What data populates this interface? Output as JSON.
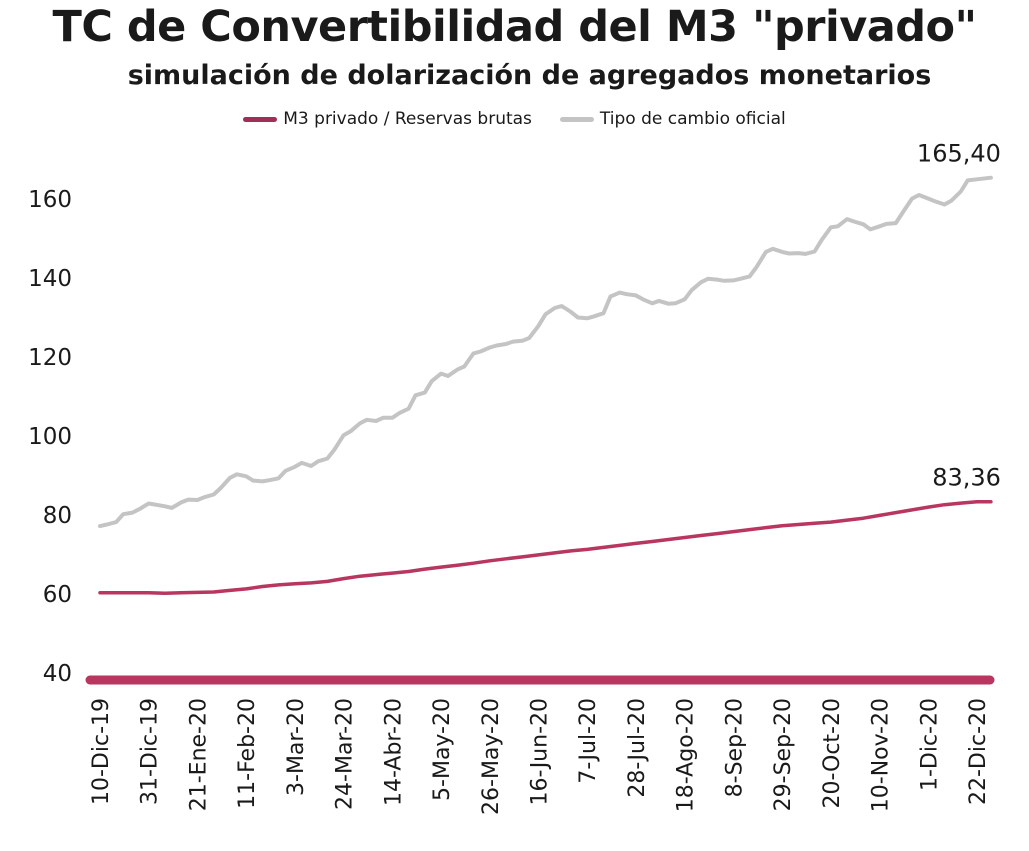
{
  "chart_data": {
    "type": "line",
    "title": "TC de Convertibilidad del M3 \"privado\"",
    "subtitle": "simulación de dolarización de agregados monetarios",
    "ylim": [
      40,
      165
    ],
    "y_ticks": [
      "40",
      "60",
      "80",
      "100",
      "120",
      "140",
      "160"
    ],
    "x_ticks": [
      "10-Dic-19",
      "31-Dic-19",
      "21-Ene-20",
      "11-Feb-20",
      "3-Mar-20",
      "24-Mar-20",
      "14-Abr-20",
      "5-May-20",
      "26-May-20",
      "16-Jun-20",
      "7-Jul-20",
      "28-Jul-20",
      "18-Ago-20",
      "8-Sep-20",
      "29-Sep-20",
      "20-Oct-20",
      "10-Nov-20",
      "1-Dic-20",
      "22-Dic-20"
    ],
    "grid": false,
    "legend_position": "top",
    "end_labels": {
      "m3": "83,36",
      "tc": "165,40"
    },
    "series": [
      {
        "key": "m3",
        "name": "M3 privado / Reservas brutas",
        "color": "#b8365f",
        "x": [
          "10-Dic-19",
          "17-Dic-19",
          "24-Dic-19",
          "31-Dic-19",
          "7-Ene-20",
          "14-Ene-20",
          "21-Ene-20",
          "28-Ene-20",
          "4-Feb-20",
          "11-Feb-20",
          "18-Feb-20",
          "25-Feb-20",
          "3-Mar-20",
          "10-Mar-20",
          "17-Mar-20",
          "24-Mar-20",
          "31-Mar-20",
          "7-Abr-20",
          "14-Abr-20",
          "21-Abr-20",
          "28-Abr-20",
          "5-May-20",
          "12-May-20",
          "19-May-20",
          "26-May-20",
          "2-Jun-20",
          "9-Jun-20",
          "16-Jun-20",
          "23-Jun-20",
          "30-Jun-20",
          "7-Jul-20",
          "14-Jul-20",
          "21-Jul-20",
          "28-Jul-20",
          "4-Ago-20",
          "11-Ago-20",
          "18-Ago-20",
          "25-Ago-20",
          "1-Sep-20",
          "8-Sep-20",
          "15-Sep-20",
          "22-Sep-20",
          "29-Sep-20",
          "6-Oct-20",
          "13-Oct-20",
          "20-Oct-20",
          "27-Oct-20",
          "3-Nov-20",
          "10-Nov-20",
          "17-Nov-20",
          "24-Nov-20",
          "1-Dic-20",
          "8-Dic-20",
          "15-Dic-20",
          "22-Dic-20",
          "28-Dic-20"
        ],
        "values": [
          60.3,
          60.3,
          60.3,
          60.3,
          60.2,
          60.3,
          60.4,
          60.5,
          60.9,
          61.3,
          61.9,
          62.3,
          62.6,
          62.8,
          63.2,
          63.9,
          64.5,
          64.9,
          65.3,
          65.7,
          66.3,
          66.8,
          67.3,
          67.8,
          68.4,
          68.9,
          69.4,
          69.9,
          70.4,
          70.9,
          71.3,
          71.8,
          72.3,
          72.8,
          73.3,
          73.8,
          74.3,
          74.8,
          75.3,
          75.8,
          76.3,
          76.8,
          77.3,
          77.6,
          77.9,
          78.2,
          78.7,
          79.2,
          79.9,
          80.6,
          81.3,
          82.0,
          82.6,
          83.0,
          83.36,
          83.36
        ]
      },
      {
        "key": "tc",
        "name": "Tipo de cambio oficial",
        "color": "#c4c4c4",
        "x": [
          "10-Dic-19",
          "13-Dic-19",
          "17-Dic-19",
          "20-Dic-19",
          "24-Dic-19",
          "27-Dic-19",
          "31-Dic-19",
          "3-Ene-20",
          "7-Ene-20",
          "10-Ene-20",
          "14-Ene-20",
          "17-Ene-20",
          "21-Ene-20",
          "24-Ene-20",
          "28-Ene-20",
          "31-Ene-20",
          "4-Feb-20",
          "7-Feb-20",
          "11-Feb-20",
          "14-Feb-20",
          "18-Feb-20",
          "21-Feb-20",
          "25-Feb-20",
          "28-Feb-20",
          "3-Mar-20",
          "6-Mar-20",
          "10-Mar-20",
          "13-Mar-20",
          "17-Mar-20",
          "20-Mar-20",
          "24-Mar-20",
          "27-Mar-20",
          "31-Mar-20",
          "3-Abr-20",
          "7-Abr-20",
          "10-Abr-20",
          "14-Abr-20",
          "17-Abr-20",
          "21-Abr-20",
          "24-Abr-20",
          "28-Abr-20",
          "1-May-20",
          "5-May-20",
          "8-May-20",
          "12-May-20",
          "15-May-20",
          "19-May-20",
          "22-May-20",
          "26-May-20",
          "29-May-20",
          "2-Jun-20",
          "5-Jun-20",
          "9-Jun-20",
          "12-Jun-20",
          "16-Jun-20",
          "19-Jun-20",
          "23-Jun-20",
          "26-Jun-20",
          "30-Jun-20",
          "3-Jul-20",
          "7-Jul-20",
          "10-Jul-20",
          "14-Jul-20",
          "17-Jul-20",
          "21-Jul-20",
          "24-Jul-20",
          "28-Jul-20",
          "31-Jul-20",
          "4-Ago-20",
          "7-Ago-20",
          "11-Ago-20",
          "14-Ago-20",
          "18-Ago-20",
          "21-Ago-20",
          "25-Ago-20",
          "28-Ago-20",
          "1-Sep-20",
          "4-Sep-20",
          "8-Sep-20",
          "11-Sep-20",
          "15-Sep-20",
          "18-Sep-20",
          "22-Sep-20",
          "25-Sep-20",
          "29-Sep-20",
          "2-Oct-20",
          "6-Oct-20",
          "9-Oct-20",
          "13-Oct-20",
          "16-Oct-20",
          "20-Oct-20",
          "23-Oct-20",
          "27-Oct-20",
          "30-Oct-20",
          "3-Nov-20",
          "6-Nov-20",
          "10-Nov-20",
          "13-Nov-20",
          "17-Nov-20",
          "20-Nov-20",
          "24-Nov-20",
          "27-Nov-20",
          "1-Dic-20",
          "4-Dic-20",
          "8-Dic-20",
          "11-Dic-20",
          "15-Dic-20",
          "18-Dic-20",
          "22-Dic-20",
          "28-Dic-20"
        ],
        "values": [
          77.2,
          77.6,
          78.2,
          80.2,
          80.6,
          81.5,
          82.9,
          82.6,
          82.2,
          81.8,
          83.2,
          83.9,
          83.8,
          84.5,
          85.2,
          86.8,
          89.4,
          90.3,
          89.8,
          88.7,
          88.5,
          88.8,
          89.3,
          91.2,
          92.2,
          93.2,
          92.4,
          93.6,
          94.3,
          96.5,
          100.2,
          101.2,
          103.2,
          104.1,
          103.8,
          104.6,
          104.6,
          105.8,
          106.9,
          110.3,
          111.0,
          113.9,
          115.8,
          115.2,
          116.8,
          117.6,
          120.9,
          121.4,
          122.4,
          122.9,
          123.3,
          123.9,
          124.1,
          124.8,
          127.9,
          130.8,
          132.4,
          132.9,
          131.4,
          130.0,
          129.8,
          130.3,
          131.1,
          135.3,
          136.3,
          135.9,
          135.6,
          134.6,
          133.6,
          134.2,
          133.5,
          133.6,
          134.6,
          136.9,
          138.9,
          139.8,
          139.6,
          139.3,
          139.4,
          139.8,
          140.4,
          142.8,
          146.6,
          147.4,
          146.6,
          146.2,
          146.3,
          146.1,
          146.7,
          149.6,
          152.8,
          153.1,
          154.9,
          154.3,
          153.6,
          152.3,
          153.1,
          153.7,
          153.9,
          156.6,
          160.1,
          161.0,
          160.1,
          159.4,
          158.6,
          159.6,
          161.9,
          164.7,
          165.0,
          165.4
        ]
      }
    ]
  }
}
